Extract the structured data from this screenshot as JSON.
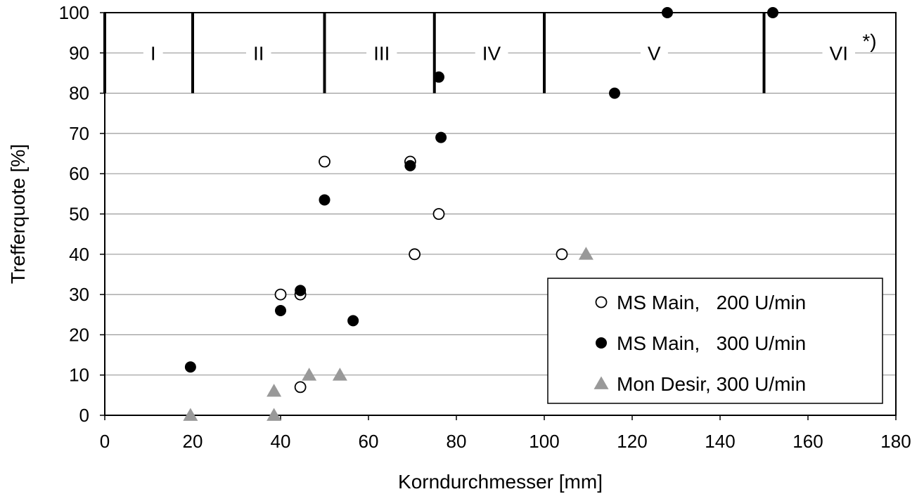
{
  "chart_data": {
    "type": "scatter",
    "xlabel": "Korndurchmesser [mm]",
    "ylabel": "Trefferquote [%]",
    "xlim": [
      0,
      180
    ],
    "ylim": [
      0,
      100
    ],
    "xticks": [
      0,
      20,
      40,
      60,
      80,
      100,
      120,
      140,
      160,
      180
    ],
    "yticks": [
      0,
      10,
      20,
      30,
      40,
      50,
      60,
      70,
      80,
      90,
      100
    ],
    "grid": "horizontal",
    "legend_position": "bottom-right",
    "size_classes": {
      "boundaries": [
        0,
        20,
        50,
        75,
        100,
        150
      ],
      "labels": [
        {
          "label": "I",
          "x": 11
        },
        {
          "label": "II",
          "x": 35
        },
        {
          "label": "III",
          "x": 63
        },
        {
          "label": "IV",
          "x": 88
        },
        {
          "label": "V",
          "x": 125
        },
        {
          "label": "VI",
          "x": 167
        }
      ],
      "marker_y_range": [
        80,
        100
      ],
      "label_y": 90,
      "note": "*)",
      "note_at": {
        "x": 174,
        "y": 93
      }
    },
    "series": [
      {
        "name": "MS Main,   200 U/min",
        "marker": "open-circle",
        "color": "#000000",
        "points": [
          [
            40,
            30
          ],
          [
            44.5,
            30
          ],
          [
            44.5,
            7
          ],
          [
            50,
            63
          ],
          [
            69.5,
            63
          ],
          [
            70.5,
            40
          ],
          [
            76,
            50
          ],
          [
            104,
            40
          ]
        ]
      },
      {
        "name": "MS Main,   300 U/min",
        "marker": "filled-circle",
        "color": "#000000",
        "points": [
          [
            19.5,
            12
          ],
          [
            40,
            26
          ],
          [
            44.5,
            31
          ],
          [
            50,
            53.5
          ],
          [
            56.5,
            23.5
          ],
          [
            69.5,
            62
          ],
          [
            76,
            84
          ],
          [
            76.5,
            69
          ],
          [
            116,
            80
          ],
          [
            128,
            100
          ],
          [
            152,
            100
          ]
        ]
      },
      {
        "name": "Mon Desir, 300 U/min",
        "marker": "triangle",
        "color": "#999999",
        "points": [
          [
            19.5,
            0
          ],
          [
            38.5,
            0
          ],
          [
            38.5,
            6
          ],
          [
            46.5,
            10
          ],
          [
            53.5,
            10
          ],
          [
            109.5,
            40
          ]
        ]
      }
    ]
  }
}
